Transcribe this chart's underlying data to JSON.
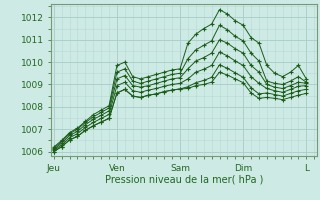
{
  "bg_color": "#ceeae4",
  "grid_color_major": "#a8ccc8",
  "grid_color_minor": "#b8d8d4",
  "line_color": "#1a5c1a",
  "xtick_labels": [
    "Jeu",
    "Ven",
    "Sam",
    "Dim",
    "L"
  ],
  "xtick_positions": [
    0,
    24,
    48,
    72,
    96
  ],
  "xlabel_text": "Pression niveau de la mer( hPa )",
  "ylim": [
    1005.8,
    1012.6
  ],
  "xlim": [
    -1,
    100
  ],
  "yticks": [
    1006,
    1007,
    1008,
    1009,
    1010,
    1011,
    1012
  ],
  "lines": [
    [
      0,
      1006.2,
      3,
      1006.5,
      6,
      1006.85,
      9,
      1007.05,
      12,
      1007.35,
      15,
      1007.65,
      18,
      1007.85,
      21,
      1008.05,
      24,
      1009.85,
      27,
      1010.0,
      30,
      1009.35,
      33,
      1009.25,
      36,
      1009.35,
      39,
      1009.45,
      42,
      1009.55,
      45,
      1009.65,
      48,
      1009.7,
      51,
      1010.85,
      54,
      1011.25,
      57,
      1011.5,
      60,
      1011.7,
      63,
      1012.35,
      66,
      1012.15,
      69,
      1011.85,
      72,
      1011.65,
      75,
      1011.1,
      78,
      1010.85,
      81,
      1009.85,
      84,
      1009.5,
      87,
      1009.35,
      90,
      1009.55,
      93,
      1009.85,
      96,
      1009.25
    ],
    [
      0,
      1006.15,
      3,
      1006.45,
      6,
      1006.8,
      9,
      1007.0,
      12,
      1007.3,
      15,
      1007.55,
      18,
      1007.75,
      21,
      1007.95,
      24,
      1009.55,
      27,
      1009.7,
      30,
      1009.15,
      33,
      1009.05,
      36,
      1009.15,
      39,
      1009.25,
      42,
      1009.35,
      45,
      1009.45,
      48,
      1009.5,
      51,
      1010.15,
      54,
      1010.55,
      57,
      1010.75,
      60,
      1010.95,
      63,
      1011.65,
      66,
      1011.45,
      69,
      1011.15,
      72,
      1010.95,
      75,
      1010.4,
      78,
      1010.05,
      81,
      1009.15,
      84,
      1009.05,
      87,
      1009.0,
      90,
      1009.15,
      93,
      1009.35,
      96,
      1009.1
    ],
    [
      0,
      1006.1,
      3,
      1006.38,
      6,
      1006.72,
      9,
      1006.9,
      12,
      1007.2,
      15,
      1007.44,
      18,
      1007.62,
      21,
      1007.82,
      24,
      1009.25,
      27,
      1009.4,
      30,
      1008.95,
      33,
      1008.88,
      36,
      1008.95,
      39,
      1009.05,
      42,
      1009.15,
      45,
      1009.25,
      48,
      1009.3,
      51,
      1009.7,
      54,
      1010.05,
      57,
      1010.2,
      60,
      1010.4,
      63,
      1011.0,
      66,
      1010.85,
      69,
      1010.6,
      72,
      1010.4,
      75,
      1009.85,
      78,
      1009.55,
      81,
      1009.0,
      84,
      1008.88,
      87,
      1008.82,
      90,
      1008.95,
      93,
      1009.1,
      96,
      1009.05
    ],
    [
      0,
      1006.05,
      3,
      1006.3,
      6,
      1006.62,
      9,
      1006.8,
      12,
      1007.08,
      15,
      1007.3,
      18,
      1007.48,
      21,
      1007.66,
      24,
      1008.95,
      27,
      1009.1,
      30,
      1008.72,
      33,
      1008.65,
      36,
      1008.75,
      39,
      1008.82,
      42,
      1008.92,
      45,
      1009.0,
      48,
      1009.05,
      51,
      1009.25,
      54,
      1009.55,
      57,
      1009.68,
      60,
      1009.85,
      63,
      1010.45,
      66,
      1010.28,
      69,
      1010.05,
      72,
      1009.85,
      75,
      1009.35,
      78,
      1009.05,
      81,
      1008.82,
      84,
      1008.72,
      87,
      1008.65,
      90,
      1008.78,
      93,
      1008.92,
      96,
      1008.95
    ],
    [
      0,
      1006.0,
      3,
      1006.22,
      6,
      1006.52,
      9,
      1006.68,
      12,
      1006.95,
      15,
      1007.15,
      18,
      1007.32,
      21,
      1007.48,
      24,
      1008.62,
      27,
      1008.78,
      30,
      1008.48,
      33,
      1008.42,
      36,
      1008.52,
      39,
      1008.58,
      42,
      1008.68,
      45,
      1008.75,
      48,
      1008.8,
      51,
      1008.9,
      54,
      1009.08,
      57,
      1009.18,
      60,
      1009.32,
      63,
      1009.88,
      66,
      1009.72,
      69,
      1009.52,
      72,
      1009.32,
      75,
      1008.85,
      78,
      1008.58,
      81,
      1008.62,
      84,
      1008.55,
      87,
      1008.48,
      90,
      1008.6,
      93,
      1008.72,
      96,
      1008.78
    ],
    [
      0,
      1006.0,
      3,
      1006.22,
      6,
      1006.52,
      9,
      1006.68,
      12,
      1006.95,
      15,
      1007.15,
      18,
      1007.32,
      21,
      1007.48,
      24,
      1008.62,
      27,
      1008.78,
      30,
      1008.48,
      33,
      1008.42,
      36,
      1008.52,
      39,
      1008.58,
      42,
      1008.68,
      45,
      1008.75,
      48,
      1008.8,
      51,
      1008.82,
      54,
      1008.95,
      57,
      1009.0,
      60,
      1009.1,
      63,
      1009.55,
      66,
      1009.42,
      69,
      1009.25,
      72,
      1009.08,
      75,
      1008.62,
      78,
      1008.38,
      81,
      1008.42,
      84,
      1008.38,
      87,
      1008.32,
      90,
      1008.42,
      93,
      1008.52,
      96,
      1008.6
    ]
  ]
}
